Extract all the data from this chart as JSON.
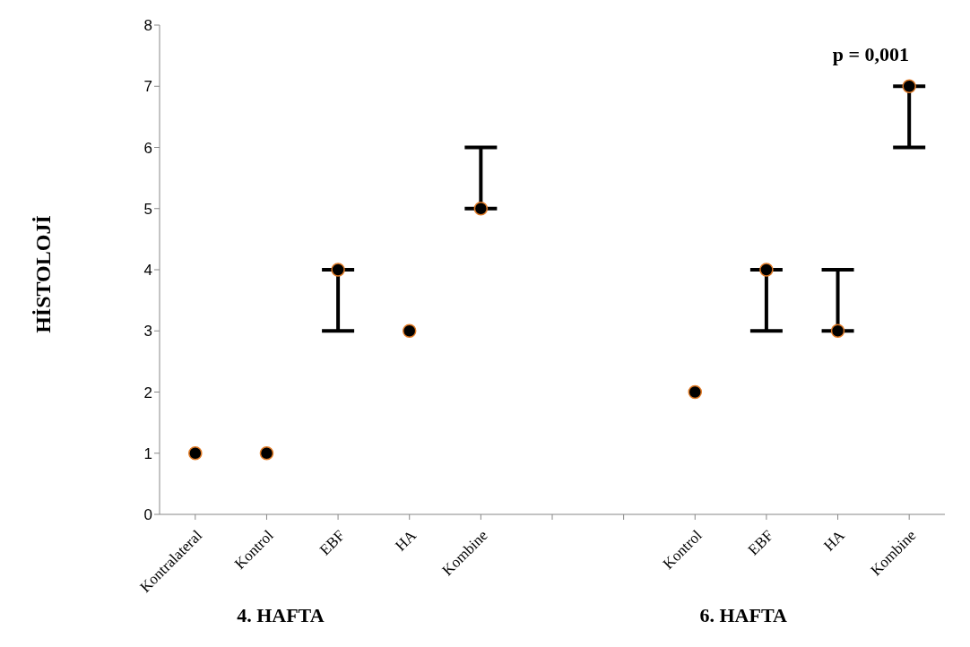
{
  "chart_data": {
    "type": "scatter",
    "ylabel": "HİSTOLOJİ",
    "categories": [
      "Kontralateral",
      "Kontrol",
      "EBF",
      "HA",
      "Kombine",
      null,
      null,
      "Kontrol",
      "EBF",
      "HA",
      "Kombine"
    ],
    "series": [
      {
        "color": "#000000",
        "values": [
          1,
          1,
          4,
          3,
          5,
          null,
          null,
          2,
          4,
          3,
          7
        ],
        "errors": [
          null,
          null,
          [
            3,
            4
          ],
          null,
          [
            5,
            6
          ],
          null,
          null,
          null,
          [
            3,
            4
          ],
          [
            3,
            4
          ],
          [
            6,
            7
          ]
        ]
      }
    ],
    "ylim": [
      0,
      8
    ],
    "yticks": [
      0,
      1,
      2,
      3,
      4,
      5,
      6,
      7,
      8
    ],
    "marker": "circle",
    "annotations": [
      "p = 0,001",
      "4. HAFTA",
      "6. HAFTA"
    ]
  }
}
